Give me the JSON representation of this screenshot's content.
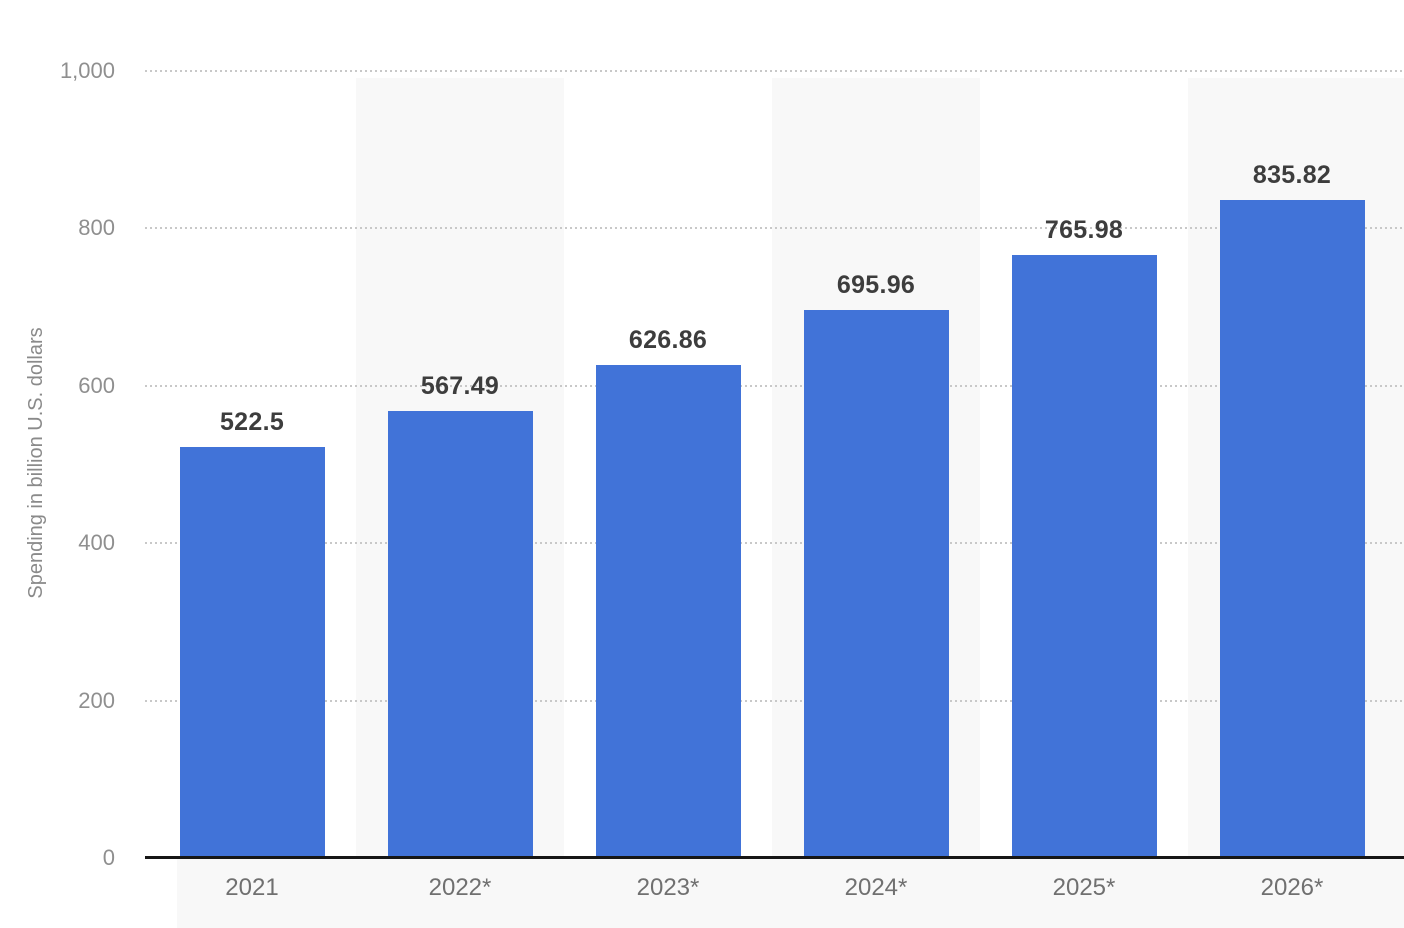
{
  "chart_data": {
    "type": "bar",
    "categories": [
      "2021",
      "2022*",
      "2023*",
      "2024*",
      "2025*",
      "2026*"
    ],
    "values": [
      522.5,
      567.49,
      626.86,
      695.96,
      765.98,
      835.82
    ],
    "value_labels": [
      "522.5",
      "567.49",
      "626.86",
      "695.96",
      "765.98",
      "835.82"
    ],
    "title": "",
    "xlabel": "",
    "ylabel": "Spending in billion U.S. dollars",
    "ylim": [
      0,
      1000
    ],
    "y_ticks": {
      "labels": [
        "0",
        "200",
        "400",
        "600",
        "800",
        "1,000"
      ],
      "values": [
        0,
        200,
        400,
        600,
        800,
        1000
      ]
    },
    "grid": "horizontal-dotted",
    "legend": "none",
    "striped_column_indices": [
      1,
      3,
      5
    ]
  },
  "style": {
    "bar_color": "#4173d8",
    "stripe_color": "#f8f8f8",
    "footer_color": "#f8f8f8",
    "grid_color": "#c8c8c8",
    "axis_color": "#161616",
    "value_label_color": "#3d3d3d",
    "tick_label_color": "#8f8f8f",
    "x_label_color": "#707070",
    "y_title_color": "#8a8a8a"
  }
}
